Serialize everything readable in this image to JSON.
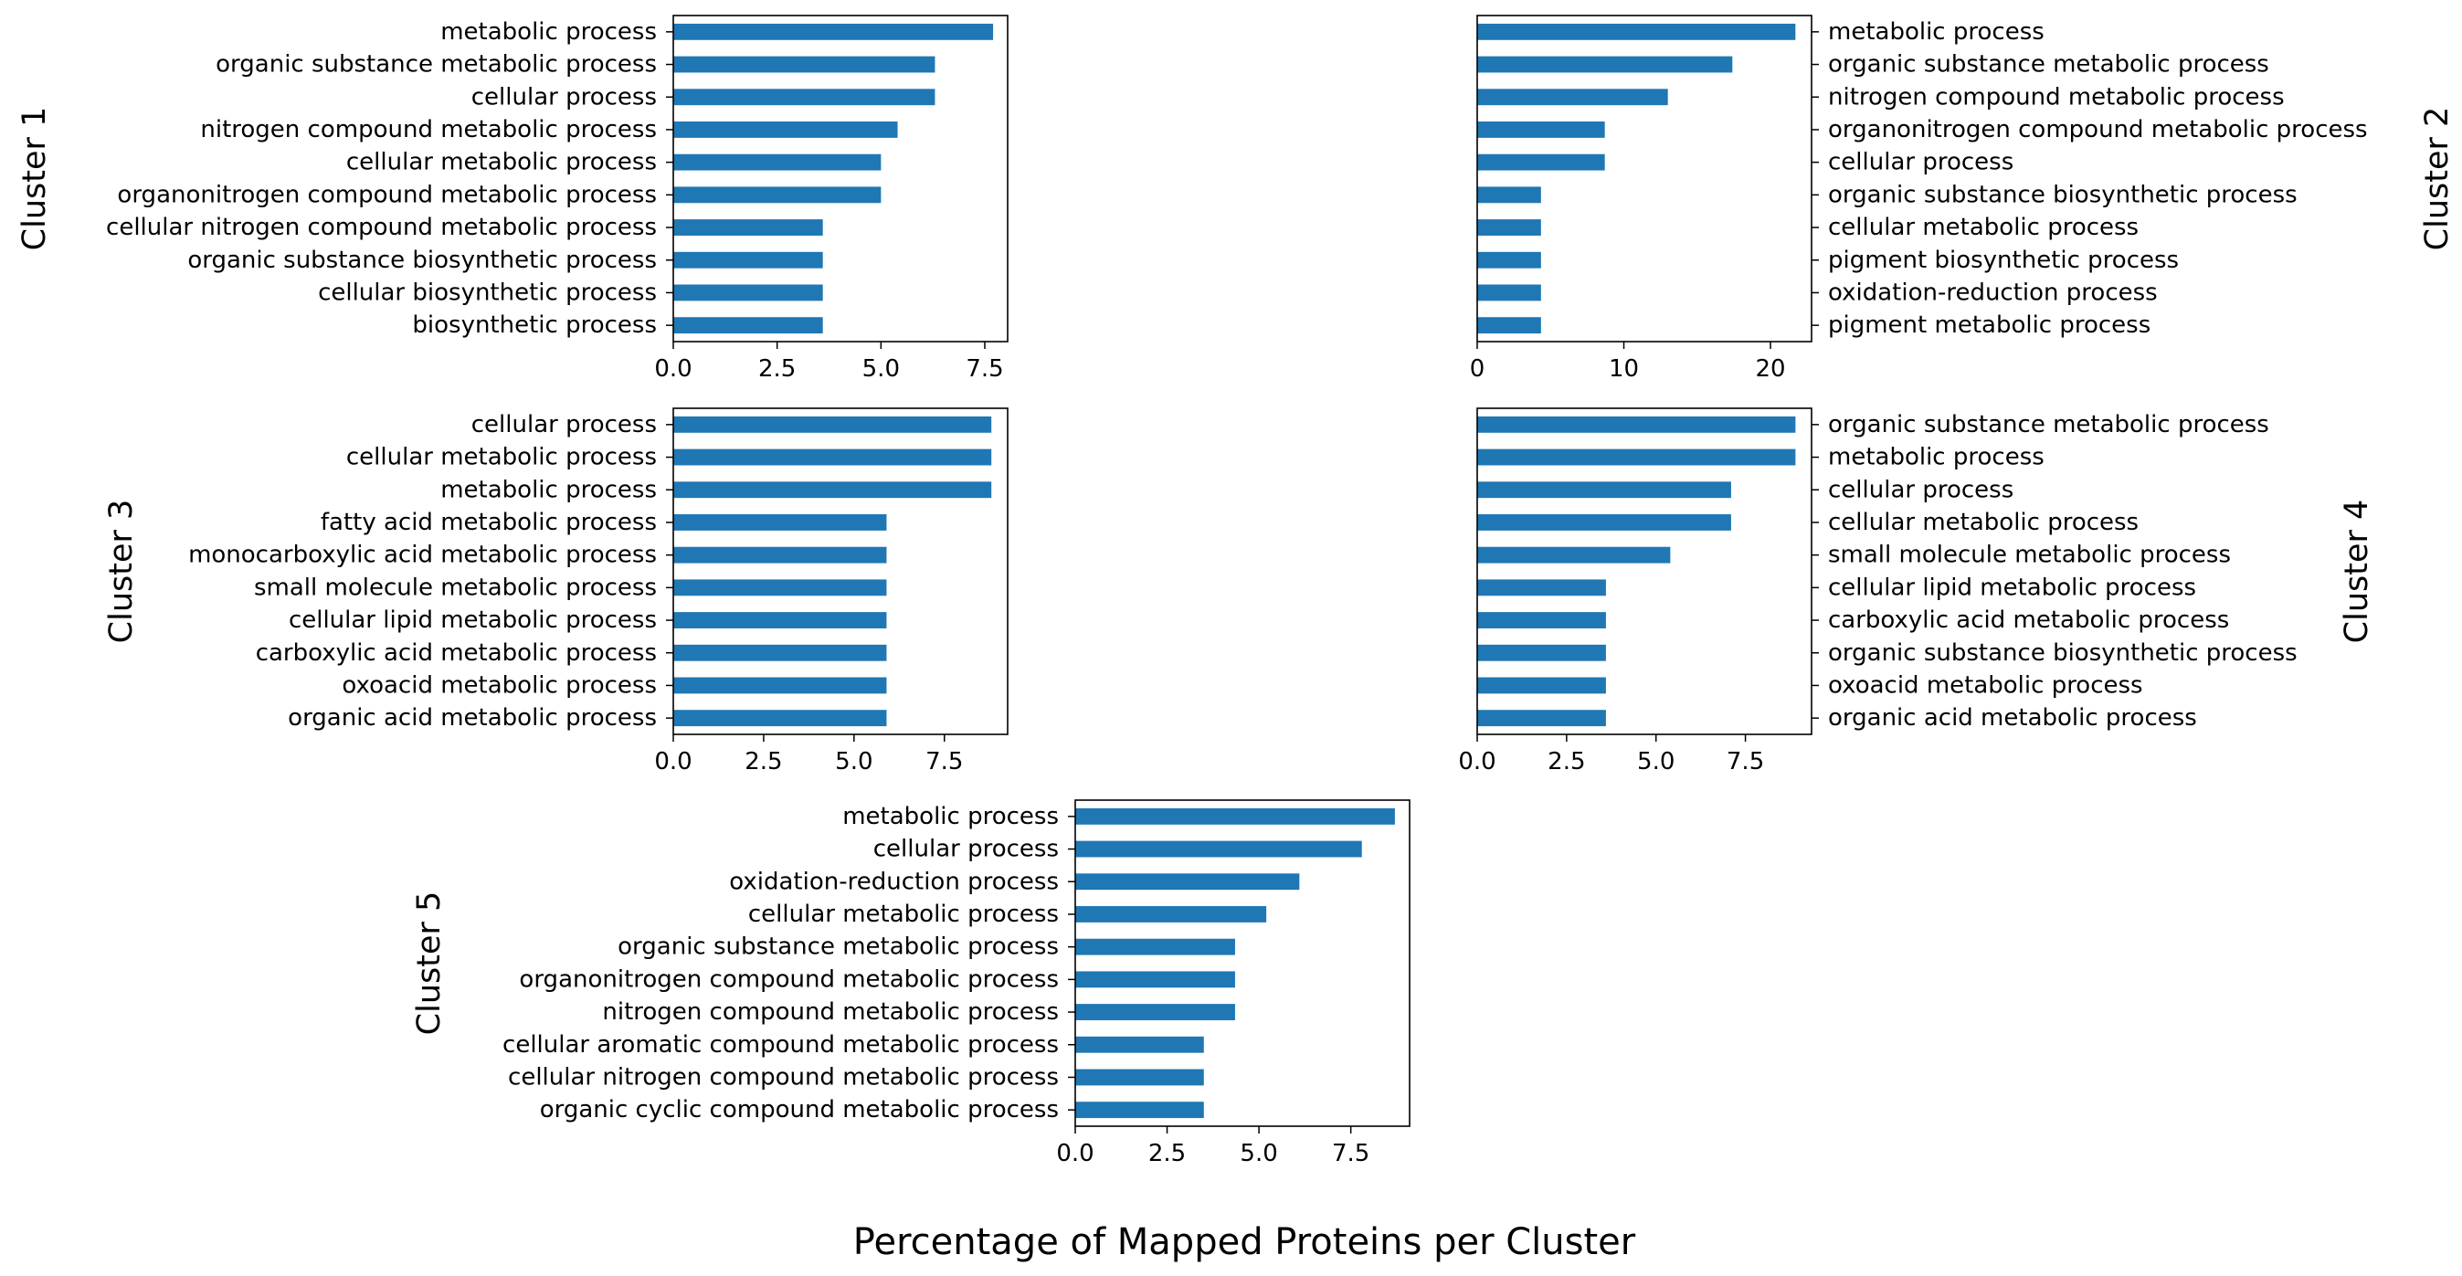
{
  "figure": {
    "xlabel": "Percentage of Mapped Proteins per Cluster",
    "bar_color": "#1f77b4"
  },
  "chart_data": [
    {
      "type": "bar",
      "orientation": "horizontal",
      "title": "Cluster 1",
      "categories": [
        "metabolic process",
        "organic substance metabolic process",
        "cellular process",
        "nitrogen compound metabolic process",
        "cellular metabolic process",
        "organonitrogen compound metabolic process",
        "cellular nitrogen compound metabolic process",
        "organic substance biosynthetic process",
        "cellular biosynthetic process",
        "biosynthetic process"
      ],
      "values": [
        7.7,
        6.3,
        6.3,
        5.4,
        5.0,
        5.0,
        3.6,
        3.6,
        3.6,
        3.6
      ],
      "xlim": [
        0,
        8.05
      ],
      "xticks": [
        0,
        2.5,
        5,
        7.5
      ],
      "xtick_labels": [
        "0.0",
        "2.5",
        "5.0",
        "7.5"
      ],
      "label_side": "left"
    },
    {
      "type": "bar",
      "orientation": "horizontal",
      "title": "Cluster 2",
      "categories": [
        "metabolic process",
        "organic substance metabolic process",
        "nitrogen compound metabolic process",
        "organonitrogen compound metabolic process",
        "cellular process",
        "organic substance biosynthetic process",
        "cellular metabolic process",
        "pigment biosynthetic process",
        "oxidation-reduction process",
        "pigment metabolic process"
      ],
      "values": [
        21.7,
        17.4,
        13.0,
        8.7,
        8.7,
        4.35,
        4.35,
        4.35,
        4.35,
        4.35
      ],
      "xlim": [
        0,
        22.8
      ],
      "xticks": [
        0,
        10,
        20
      ],
      "xtick_labels": [
        "0",
        "10",
        "20"
      ],
      "label_side": "right"
    },
    {
      "type": "bar",
      "orientation": "horizontal",
      "title": "Cluster 3",
      "categories": [
        "cellular process",
        "cellular metabolic process",
        "metabolic process",
        "fatty acid metabolic process",
        "monocarboxylic acid metabolic process",
        "small molecule metabolic process",
        "cellular lipid metabolic process",
        "carboxylic acid metabolic process",
        "oxoacid metabolic process",
        "organic acid metabolic process"
      ],
      "values": [
        8.8,
        8.8,
        8.8,
        5.9,
        5.9,
        5.9,
        5.9,
        5.9,
        5.9,
        5.9
      ],
      "xlim": [
        0,
        9.25
      ],
      "xticks": [
        0,
        2.5,
        5,
        7.5
      ],
      "xtick_labels": [
        "0.0",
        "2.5",
        "5.0",
        "7.5"
      ],
      "label_side": "left"
    },
    {
      "type": "bar",
      "orientation": "horizontal",
      "title": "Cluster 4",
      "categories": [
        "organic substance metabolic process",
        "metabolic process",
        "cellular process",
        "cellular metabolic process",
        "small molecule metabolic process",
        "cellular lipid metabolic process",
        "carboxylic acid metabolic process",
        "organic substance biosynthetic process",
        "oxoacid metabolic process",
        "organic acid metabolic process"
      ],
      "values": [
        8.9,
        8.9,
        7.1,
        7.1,
        5.4,
        3.6,
        3.6,
        3.6,
        3.6,
        3.6
      ],
      "xlim": [
        0,
        9.35
      ],
      "xticks": [
        0,
        2.5,
        5,
        7.5
      ],
      "xtick_labels": [
        "0.0",
        "2.5",
        "5.0",
        "7.5"
      ],
      "label_side": "right"
    },
    {
      "type": "bar",
      "orientation": "horizontal",
      "title": "Cluster 5",
      "categories": [
        "metabolic process",
        "cellular process",
        "oxidation-reduction process",
        "cellular metabolic process",
        "organic substance metabolic process",
        "organonitrogen compound metabolic process",
        "nitrogen compound metabolic process",
        "cellular aromatic compound metabolic process",
        "cellular nitrogen compound metabolic process",
        "organic cyclic compound metabolic process"
      ],
      "values": [
        8.7,
        7.8,
        6.1,
        5.2,
        4.35,
        4.35,
        4.35,
        3.5,
        3.5,
        3.5
      ],
      "xlim": [
        0,
        9.1
      ],
      "xticks": [
        0,
        2.5,
        5,
        7.5
      ],
      "xtick_labels": [
        "0.0",
        "2.5",
        "5.0",
        "7.5"
      ],
      "label_side": "left"
    }
  ]
}
